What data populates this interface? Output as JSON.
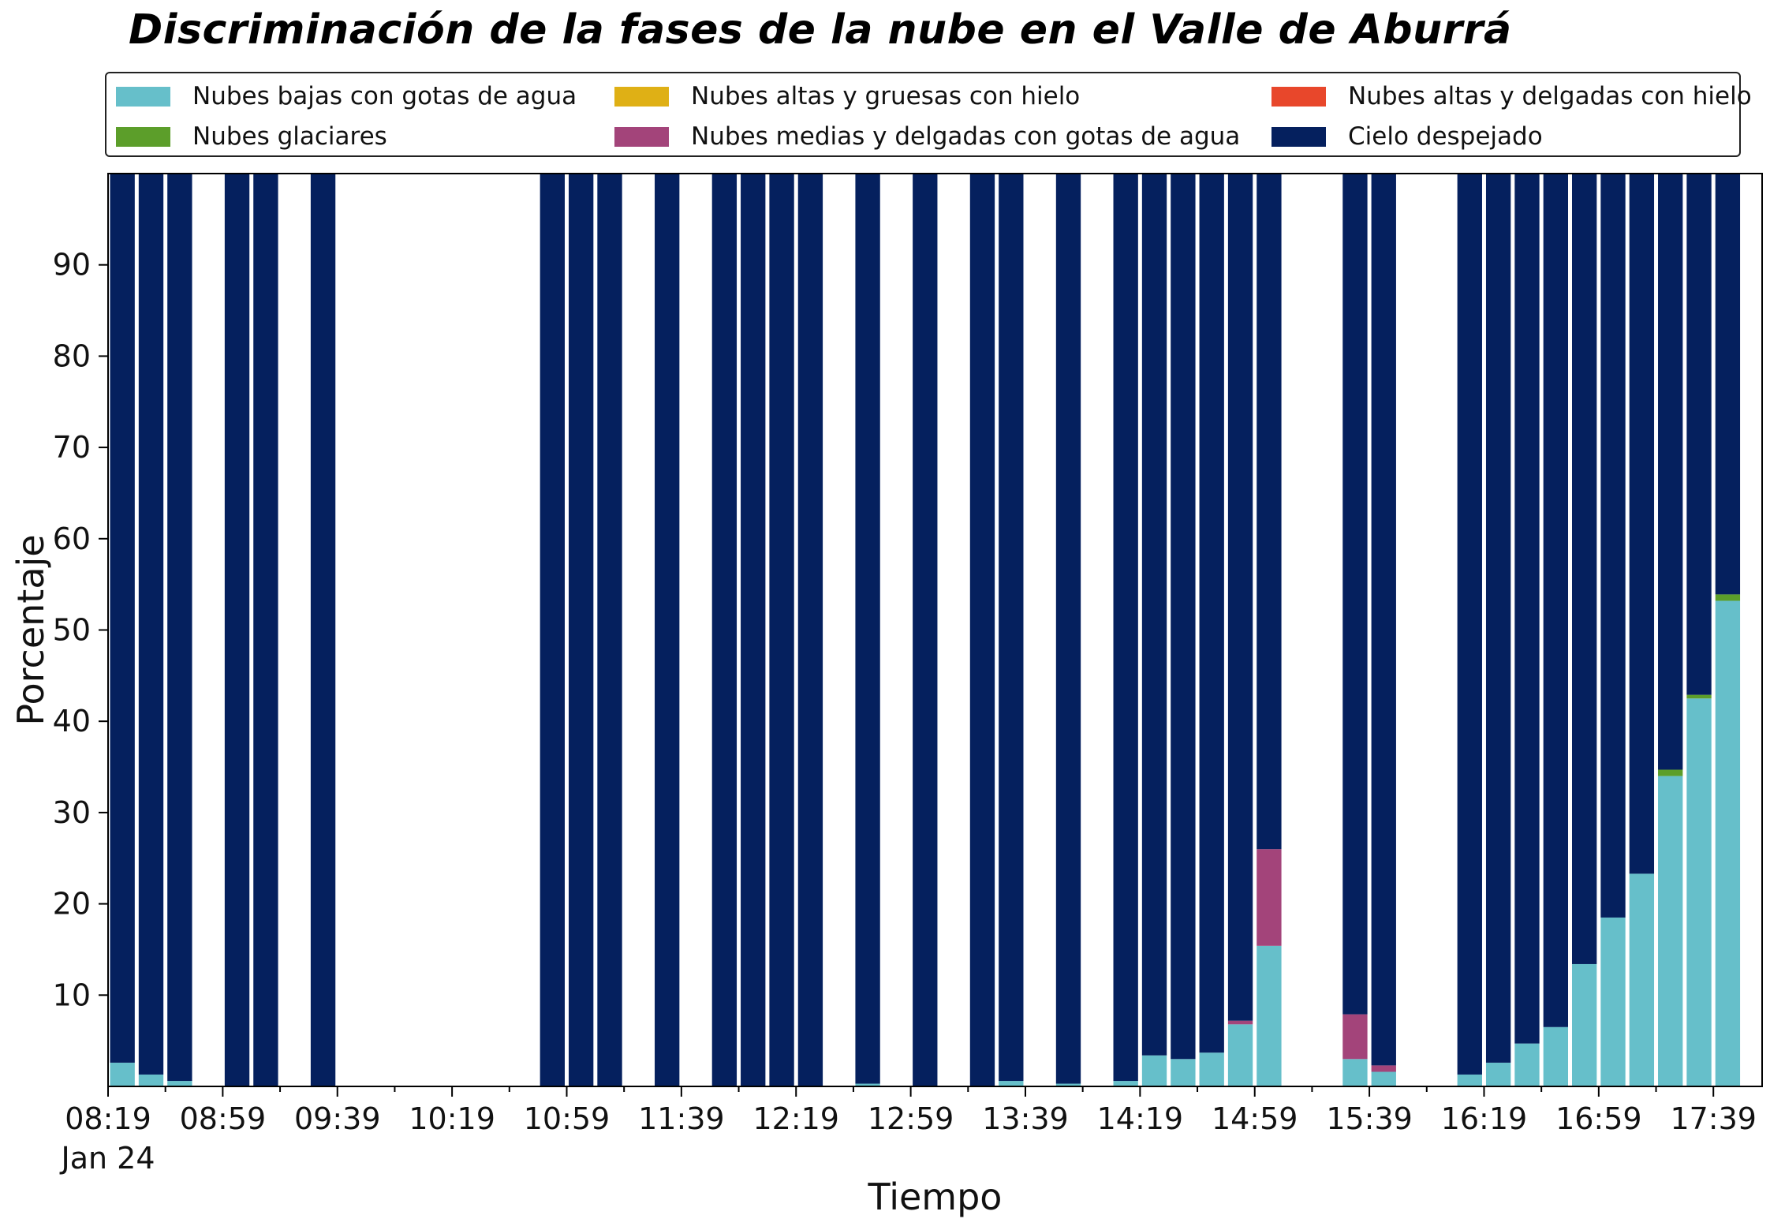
{
  "title": "Discriminación de la fases de la nube en el Valle de Aburrá",
  "legend": {
    "items": [
      {
        "label": "Nubes bajas con gotas de agua",
        "color": "#66bfca"
      },
      {
        "label": "Nubes glaciares",
        "color": "#5c9e2a"
      },
      {
        "label": "Nubes altas y gruesas con hielo",
        "color": "#dfb015"
      },
      {
        "label": "Nubes medias y delgadas con gotas de agua",
        "color": "#a3447a"
      },
      {
        "label": "Nubes altas y delgadas con hielo",
        "color": "#e8472b"
      },
      {
        "label": "Cielo despejado",
        "color": "#05205e"
      }
    ]
  },
  "chart_data": {
    "type": "bar",
    "stacked": true,
    "title": "Discriminación de la fases de la nube en el Valle de Aburrá",
    "xlabel": "Tiempo",
    "ylabel": "Porcentaje",
    "ylim": [
      0,
      100
    ],
    "y_ticks": [
      10,
      20,
      30,
      40,
      50,
      60,
      70,
      80,
      90
    ],
    "x_tick_labels": [
      "08:19\nJan 24",
      "08:59",
      "09:39",
      "10:19",
      "10:59",
      "11:39",
      "12:19",
      "12:59",
      "13:39",
      "14:19",
      "14:59",
      "15:39",
      "16:19",
      "16:59",
      "17:39"
    ],
    "x_minor_tick_interval_min": 20,
    "bar_interval_min": 10,
    "x_start": "08:19",
    "grid": false,
    "legend_position": "top",
    "categories": [
      "08:24",
      "08:34",
      "08:44",
      "09:04",
      "09:14",
      "09:34",
      "10:54",
      "11:04",
      "11:14",
      "11:34",
      "11:54",
      "12:04",
      "12:14",
      "12:24",
      "12:44",
      "13:04",
      "13:24",
      "13:34",
      "13:54",
      "14:14",
      "14:24",
      "14:34",
      "14:44",
      "14:54",
      "15:04",
      "15:34",
      "15:44",
      "16:14",
      "16:24",
      "16:34",
      "16:44",
      "16:54",
      "17:04",
      "17:14",
      "17:24",
      "17:34",
      "17:44"
    ],
    "series": [
      {
        "name": "Nubes bajas con gotas de agua",
        "color": "#66bfca",
        "values": [
          2.6,
          1.3,
          0.6,
          0,
          0,
          0,
          0,
          0,
          0,
          0,
          0,
          0,
          0,
          0,
          0.3,
          0,
          0,
          0.6,
          0.3,
          0.6,
          3.4,
          3.0,
          3.7,
          6.8,
          15.4,
          3.0,
          1.6,
          1.3,
          2.6,
          4.7,
          6.5,
          13.4,
          18.5,
          23.3,
          34.0,
          42.5,
          53.2
        ]
      },
      {
        "name": "Nubes glaciares",
        "color": "#5c9e2a",
        "values": [
          0,
          0,
          0,
          0,
          0,
          0,
          0,
          0,
          0,
          0,
          0,
          0,
          0,
          0,
          0,
          0,
          0,
          0,
          0,
          0,
          0,
          0,
          0,
          0,
          0,
          0,
          0,
          0,
          0,
          0,
          0,
          0,
          0,
          0,
          0.7,
          0.4,
          0.7
        ]
      },
      {
        "name": "Nubes altas y gruesas con hielo",
        "color": "#dfb015",
        "values": [
          0,
          0,
          0,
          0,
          0,
          0,
          0,
          0,
          0,
          0,
          0,
          0,
          0,
          0,
          0,
          0,
          0,
          0,
          0,
          0,
          0,
          0,
          0,
          0,
          0,
          0,
          0,
          0,
          0,
          0,
          0,
          0,
          0,
          0,
          0,
          0,
          0
        ]
      },
      {
        "name": "Nubes medias y delgadas con gotas de agua",
        "color": "#a3447a",
        "values": [
          0,
          0,
          0,
          0,
          0,
          0,
          0,
          0,
          0,
          0,
          0,
          0,
          0,
          0,
          0,
          0,
          0,
          0,
          0,
          0,
          0,
          0,
          0,
          0.4,
          10.6,
          4.9,
          0.7,
          0,
          0,
          0,
          0,
          0,
          0,
          0,
          0,
          0,
          0
        ]
      },
      {
        "name": "Nubes altas y delgadas con hielo",
        "color": "#e8472b",
        "values": [
          0,
          0,
          0,
          0,
          0,
          0,
          0,
          0,
          0,
          0,
          0,
          0,
          0,
          0,
          0,
          0,
          0,
          0,
          0,
          0,
          0,
          0,
          0,
          0,
          0,
          0,
          0,
          0,
          0,
          0,
          0,
          0,
          0,
          0,
          0,
          0,
          0
        ]
      },
      {
        "name": "Cielo despejado",
        "color": "#05205e",
        "values": [
          97.4,
          98.7,
          99.4,
          100,
          100,
          100,
          100,
          100,
          100,
          100,
          100,
          100,
          100,
          100,
          99.7,
          100,
          100,
          99.4,
          99.7,
          99.4,
          96.6,
          97.0,
          96.3,
          92.8,
          74.0,
          92.1,
          97.7,
          98.7,
          97.4,
          95.3,
          93.5,
          86.6,
          81.5,
          76.7,
          65.3,
          57.1,
          46.1
        ]
      }
    ]
  }
}
